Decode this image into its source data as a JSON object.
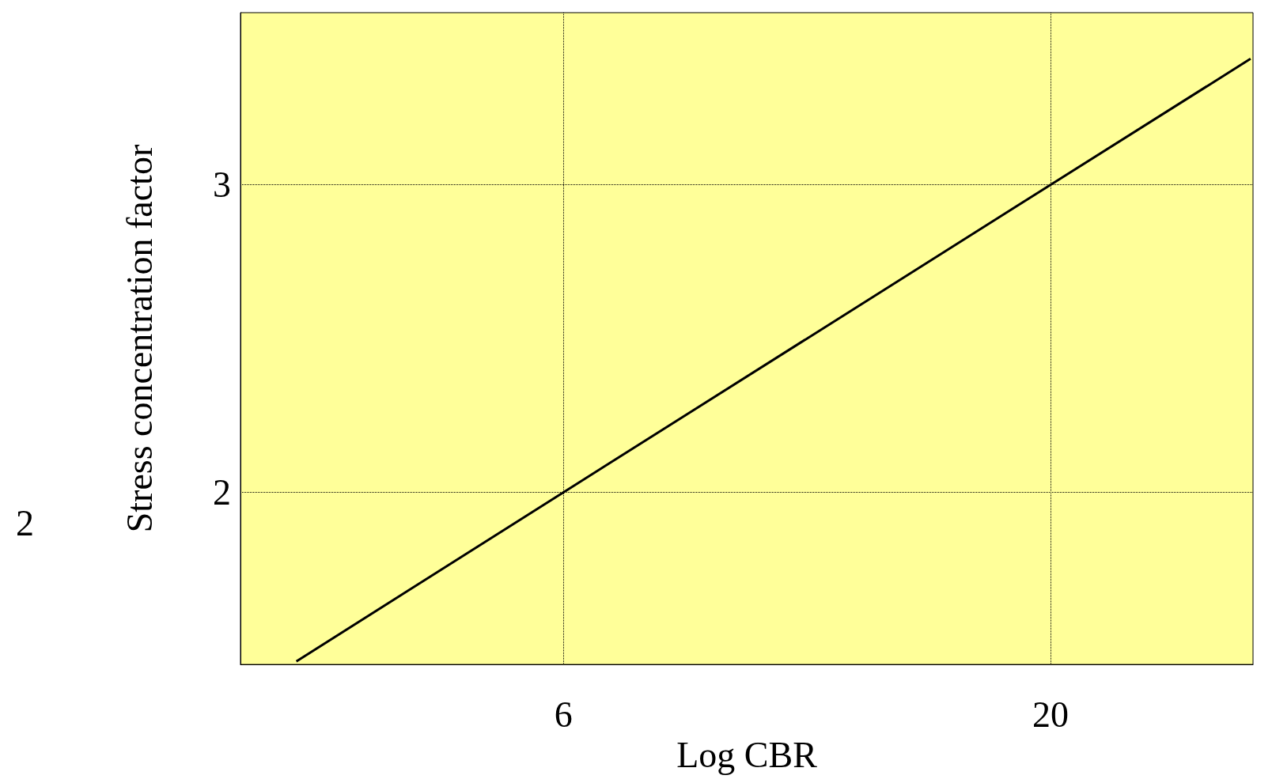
{
  "chart_data": {
    "type": "line",
    "xlabel": "Log CBR",
    "ylabel": "Stress concentration factor",
    "log": "x",
    "xlim": [
      2.7,
      33
    ],
    "xticks": [
      6,
      20
    ],
    "ylim": [
      1.44,
      3.56
    ],
    "yticks": [
      2,
      3
    ],
    "grid": true,
    "marker": "none",
    "line_style": "solid",
    "x": [
      3.1,
      6,
      20,
      32.8
    ],
    "series": [
      {
        "color": "#000000",
        "values": [
          1.45,
          2,
          3,
          3.41
        ]
      }
    ],
    "annotations": [
      "2"
    ]
  }
}
